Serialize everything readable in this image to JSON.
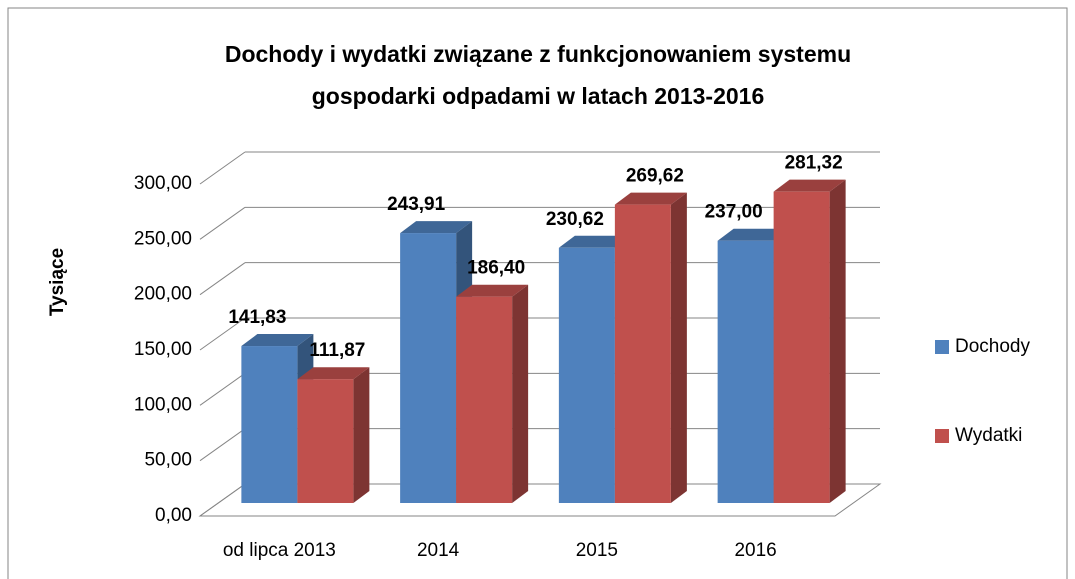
{
  "chart_data": {
    "type": "bar3d",
    "title": [
      "Dochody i wydatki związane z funkcjonowaniem systemu",
      "gospodarki odpadami w latach 2013-2016"
    ],
    "ylabel": "Tysiące",
    "categories": [
      "od lipca 2013",
      "2014",
      "2015",
      "2016"
    ],
    "series": [
      {
        "name": "Dochody",
        "color": "#4f81bd",
        "values": [
          141.83,
          243.91,
          230.62,
          237.0
        ],
        "value_labels": [
          "141,83",
          "243,91",
          "230,62",
          "237,00"
        ]
      },
      {
        "name": "Wydatki",
        "color": "#c0504d",
        "values": [
          111.87,
          186.4,
          269.62,
          281.32
        ],
        "value_labels": [
          "111,87",
          "186,40",
          "269,62",
          "281,32"
        ]
      }
    ],
    "ylim": [
      0,
      300
    ],
    "yticks": [
      {
        "value": 0,
        "label": "0,00"
      },
      {
        "value": 50,
        "label": "50,00"
      },
      {
        "value": 100,
        "label": "100,00"
      },
      {
        "value": 150,
        "label": "150,00"
      },
      {
        "value": 200,
        "label": "200,00"
      },
      {
        "value": 250,
        "label": "250,00"
      },
      {
        "value": 300,
        "label": "300,00"
      }
    ],
    "grid": true,
    "legend": "right"
  }
}
